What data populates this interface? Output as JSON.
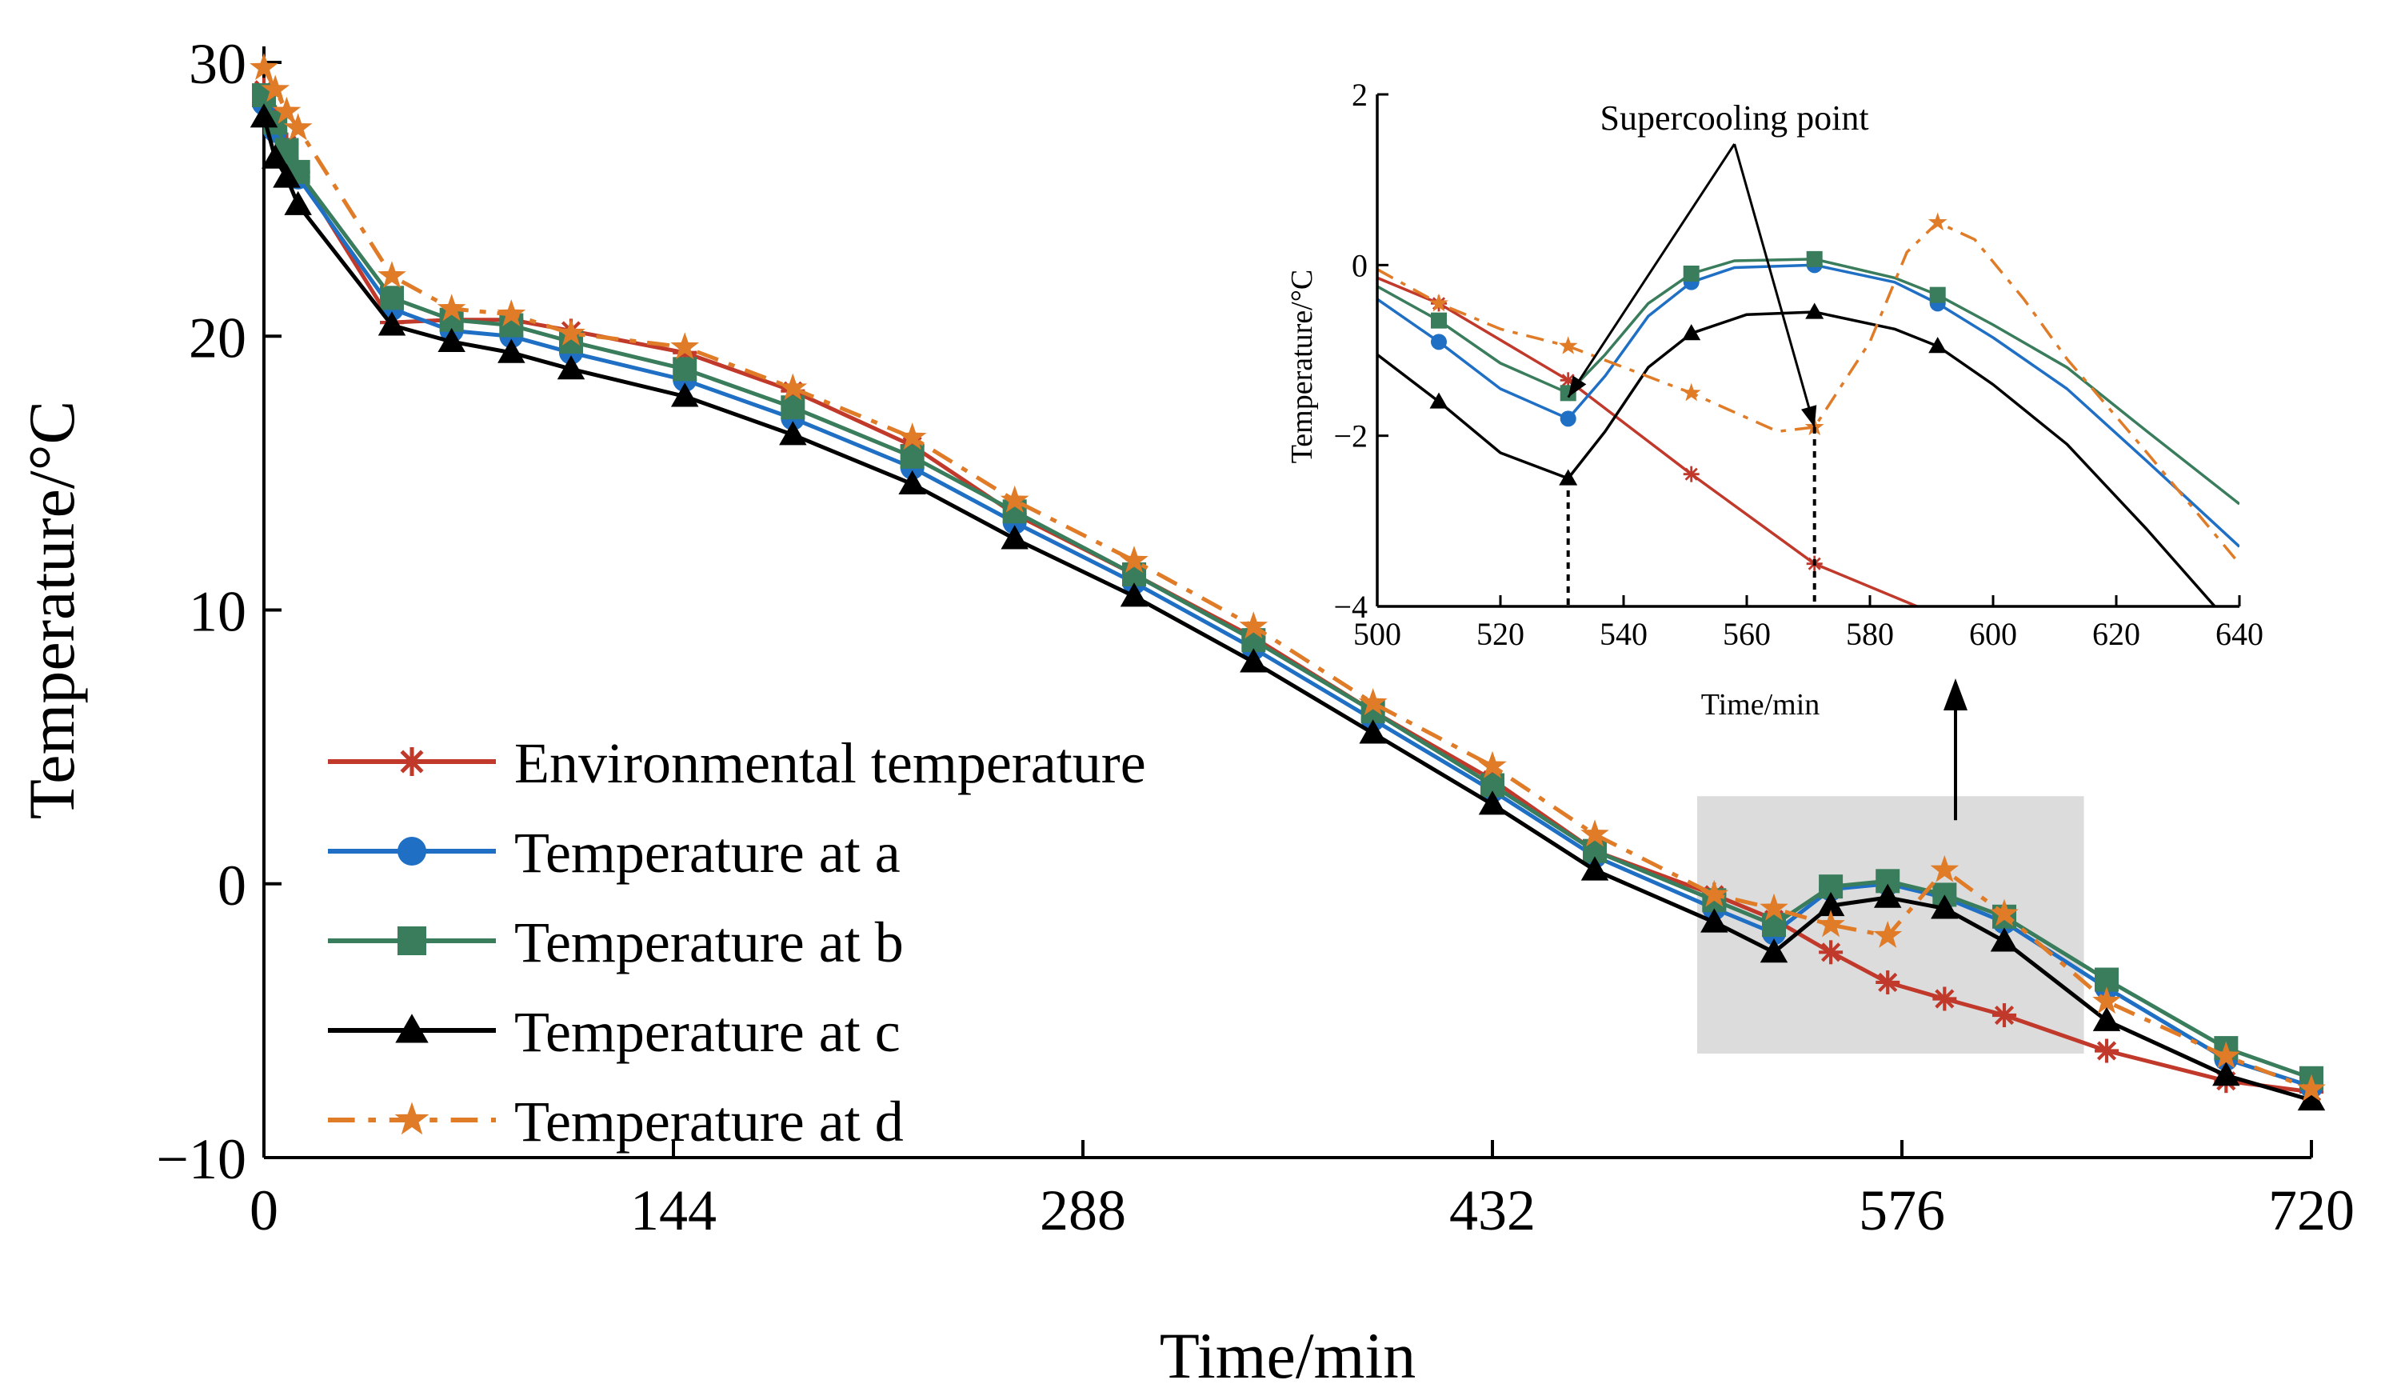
{
  "colors": {
    "env": "#c0392b",
    "a": "#1f6fc5",
    "b": "#3a7d5c",
    "c": "#000000",
    "d": "#e07b28",
    "highlight": "#dcdcdc"
  },
  "chart_data": [
    {
      "type": "line",
      "title": "",
      "xlabel": "Time/min",
      "ylabel": "Temperature/°C",
      "xlim": [
        0,
        720
      ],
      "ylim": [
        -10,
        30
      ],
      "xticks": [
        "0",
        "144",
        "288",
        "432",
        "576",
        "720"
      ],
      "yticks": [
        "−10",
        "0",
        "10",
        "20",
        "30"
      ],
      "legend_position": "bottom-left",
      "highlight_region": {
        "x": [
          504,
          640
        ],
        "y": [
          -6.2,
          3.2
        ]
      },
      "series": [
        {
          "name": "Environmental temperature",
          "key": "env",
          "marker": "asterisk",
          "dash": "solid",
          "x": [
            0,
            4,
            8,
            12,
            45,
            66,
            87,
            108,
            148,
            186,
            228,
            264,
            306,
            348,
            390,
            432,
            468,
            510,
            531,
            551,
            571,
            591,
            612,
            648,
            690,
            720
          ],
          "y": [
            29,
            28,
            27,
            26,
            20.5,
            20.6,
            20.6,
            20.2,
            19.4,
            18,
            16,
            13.5,
            11.3,
            9,
            6.3,
            3.8,
            1.2,
            -0.4,
            -1.3,
            -2.5,
            -3.6,
            -4.2,
            -4.8,
            -6.1,
            -7.2,
            -7.6
          ]
        },
        {
          "name": "Temperature at a",
          "key": "a",
          "marker": "circle",
          "dash": "solid",
          "x": [
            0,
            4,
            8,
            12,
            45,
            66,
            87,
            108,
            148,
            186,
            228,
            264,
            306,
            348,
            390,
            432,
            468,
            510,
            531,
            551,
            571,
            591,
            612,
            648,
            690,
            720
          ],
          "y": [
            28.5,
            27.5,
            26.5,
            25.8,
            21,
            20.2,
            20,
            19.4,
            18.4,
            17,
            15.2,
            13.2,
            11,
            8.6,
            6,
            3.4,
            1,
            -0.9,
            -1.8,
            -0.2,
            0,
            -0.5,
            -1.4,
            -3.8,
            -6.4,
            -7.4
          ]
        },
        {
          "name": "Temperature at b",
          "key": "b",
          "marker": "square",
          "dash": "solid",
          "x": [
            0,
            4,
            8,
            12,
            45,
            66,
            87,
            108,
            148,
            186,
            228,
            264,
            306,
            348,
            390,
            432,
            468,
            510,
            531,
            551,
            571,
            591,
            612,
            648,
            690,
            720
          ],
          "y": [
            28.8,
            27.8,
            26.8,
            26,
            21.4,
            20.6,
            20.4,
            19.8,
            18.8,
            17.4,
            15.6,
            13.6,
            11.3,
            8.9,
            6.3,
            3.6,
            1.2,
            -0.6,
            -1.5,
            -0.1,
            0.1,
            -0.4,
            -1.2,
            -3.5,
            -6,
            -7.1
          ]
        },
        {
          "name": "Temperature at c",
          "key": "c",
          "marker": "triangle",
          "dash": "solid",
          "x": [
            0,
            4,
            8,
            12,
            45,
            66,
            87,
            108,
            148,
            186,
            228,
            264,
            306,
            348,
            390,
            432,
            468,
            510,
            531,
            551,
            571,
            591,
            612,
            648,
            690,
            720
          ],
          "y": [
            28,
            26.5,
            25.8,
            24.8,
            20.4,
            19.8,
            19.4,
            18.8,
            17.8,
            16.4,
            14.6,
            12.6,
            10.5,
            8.1,
            5.5,
            2.9,
            0.5,
            -1.4,
            -2.5,
            -0.8,
            -0.5,
            -0.9,
            -2.1,
            -5,
            -7,
            -7.9
          ]
        },
        {
          "name": "Temperature at d",
          "key": "d",
          "marker": "star",
          "dash": "dashdot",
          "x": [
            0,
            4,
            8,
            12,
            45,
            66,
            87,
            108,
            148,
            186,
            228,
            264,
            306,
            348,
            390,
            432,
            468,
            510,
            531,
            551,
            571,
            591,
            612,
            648,
            690,
            720
          ],
          "y": [
            29.8,
            29,
            28.2,
            27.6,
            22.2,
            21,
            20.8,
            20.1,
            19.6,
            18.1,
            16.3,
            14,
            11.8,
            9.4,
            6.6,
            4.3,
            1.8,
            -0.4,
            -0.9,
            -1.5,
            -1.9,
            0.5,
            -1.1,
            -4.3,
            -6.3,
            -7.5
          ]
        }
      ]
    },
    {
      "type": "line",
      "title": "",
      "xlabel": "Time/min",
      "ylabel": "Temperature/°C",
      "xlim": [
        500,
        640
      ],
      "ylim": [
        -4,
        2
      ],
      "xticks": [
        "500",
        "520",
        "540",
        "560",
        "580",
        "600",
        "620",
        "640"
      ],
      "yticks": [
        "−4",
        "−2",
        "0",
        "2"
      ],
      "annotation": {
        "text": "Supercooling point",
        "text_at": [
          558,
          1.55
        ],
        "targets": [
          [
            531,
            -1.55
          ],
          [
            571,
            -1.9
          ]
        ],
        "drops": [
          [
            531,
            -2.5
          ],
          [
            571,
            -1.9
          ]
        ]
      },
      "series": [
        {
          "key": "env",
          "marker": "asterisk",
          "dash": "solid",
          "x": [
            500,
            510,
            531,
            551,
            571,
            591
          ],
          "y": [
            -0.15,
            -0.45,
            -1.35,
            -2.45,
            -3.5,
            -4.1
          ]
        },
        {
          "key": "a",
          "marker": "circle",
          "dash": "solid",
          "x": [
            500,
            510,
            520,
            531,
            537,
            544,
            551,
            558,
            571,
            584,
            591,
            600,
            612,
            625,
            640
          ],
          "y": [
            -0.4,
            -0.9,
            -1.45,
            -1.8,
            -1.3,
            -0.6,
            -0.2,
            -0.03,
            0,
            -0.2,
            -0.45,
            -0.85,
            -1.45,
            -2.3,
            -3.3
          ]
        },
        {
          "key": "b",
          "marker": "square",
          "dash": "solid",
          "x": [
            500,
            510,
            520,
            531,
            537,
            544,
            551,
            558,
            571,
            584,
            591,
            600,
            612,
            625,
            640
          ],
          "y": [
            -0.25,
            -0.65,
            -1.15,
            -1.5,
            -1.05,
            -0.45,
            -0.1,
            0.05,
            0.07,
            -0.15,
            -0.35,
            -0.7,
            -1.2,
            -1.95,
            -2.8
          ]
        },
        {
          "key": "c",
          "marker": "triangle",
          "dash": "solid",
          "x": [
            500,
            510,
            520,
            531,
            537,
            544,
            551,
            560,
            571,
            584,
            591,
            600,
            612,
            625,
            636
          ],
          "y": [
            -1.05,
            -1.6,
            -2.2,
            -2.5,
            -1.95,
            -1.2,
            -0.8,
            -0.58,
            -0.55,
            -0.75,
            -0.95,
            -1.4,
            -2.1,
            -3.1,
            -4
          ]
        },
        {
          "key": "d",
          "marker": "star",
          "dash": "dashdot",
          "x": [
            500,
            510,
            520,
            531,
            551,
            565,
            571,
            580,
            586,
            591,
            597,
            605,
            612,
            625,
            640
          ],
          "y": [
            -0.05,
            -0.45,
            -0.75,
            -0.95,
            -1.5,
            -1.95,
            -1.9,
            -0.9,
            0.15,
            0.5,
            0.3,
            -0.4,
            -1.1,
            -2.2,
            -3.5
          ]
        }
      ]
    }
  ]
}
